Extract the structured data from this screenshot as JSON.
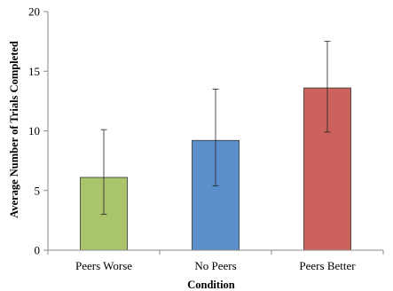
{
  "chart_data": {
    "type": "bar",
    "title": "",
    "xlabel": "Condition",
    "ylabel": "Average Number of Trials Completed",
    "categories": [
      "Peers Worse",
      "No Peers",
      "Peers Better"
    ],
    "values": [
      6.1,
      9.2,
      13.6
    ],
    "error_low": [
      3.0,
      5.4,
      9.9
    ],
    "error_high": [
      10.1,
      13.5,
      17.5
    ],
    "colors": [
      "#a9c46a",
      "#5b8fcb",
      "#cc625c"
    ],
    "ylim": [
      0,
      20
    ],
    "yticks": [
      "0",
      "5",
      "10",
      "15",
      "20"
    ],
    "ytick_values": [
      0,
      5,
      10,
      15,
      20
    ],
    "grid": false,
    "legend": "none"
  }
}
